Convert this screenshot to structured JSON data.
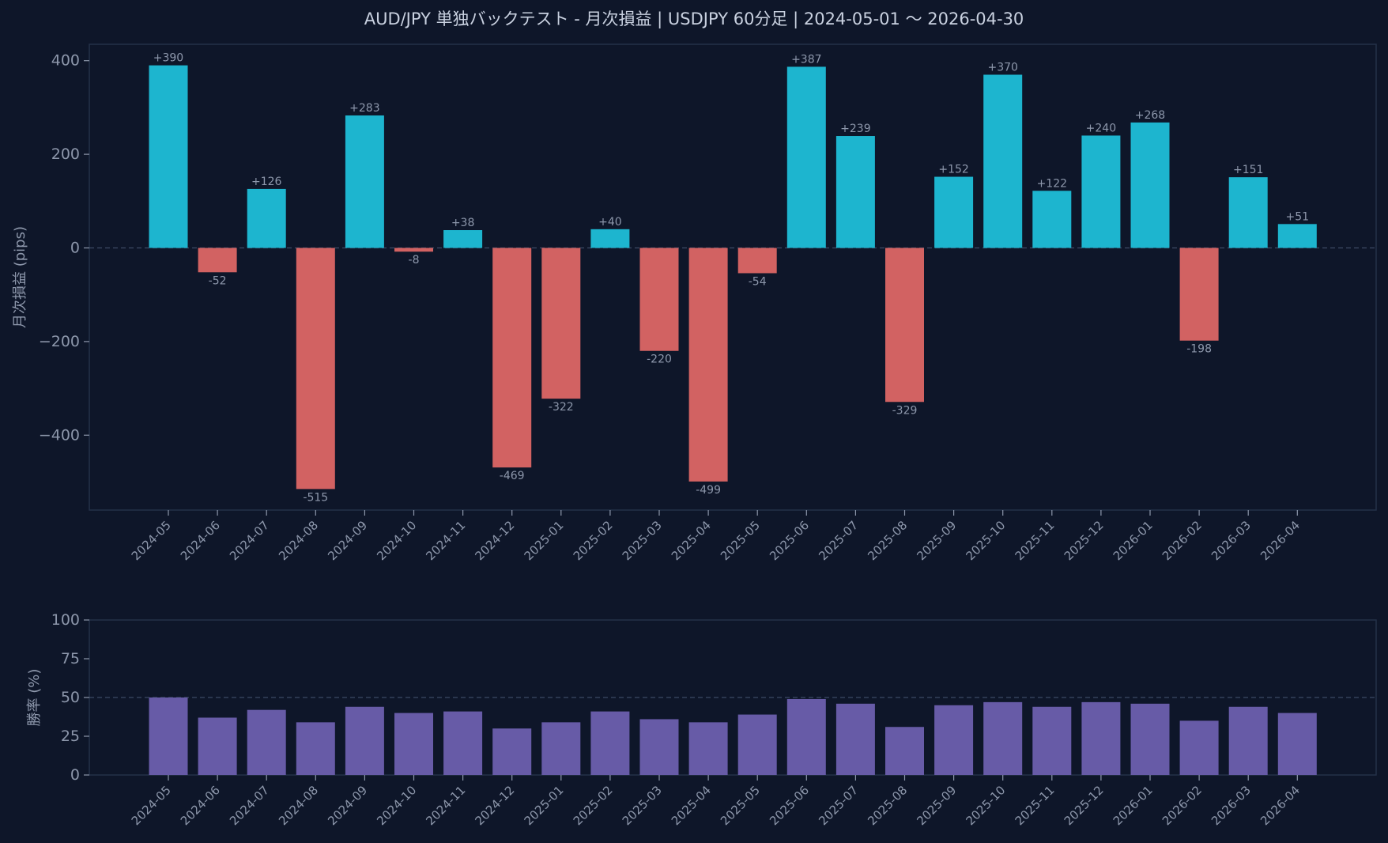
{
  "chart_data": [
    {
      "type": "bar",
      "title": "AUD/JPY 単独バックテスト - 月次損益 | USDJPY 60分足 | 2024-05-01 〜 2026-04-30",
      "xlabel": "",
      "ylabel": "月次損益 (pips)",
      "ylim": [
        -560,
        435
      ],
      "yticks": [
        400,
        200,
        0,
        -200,
        -400
      ],
      "ytick_labels": [
        "400",
        "200",
        "0",
        "−200",
        "−400"
      ],
      "reference_line": 0,
      "grid": false,
      "categories": [
        "2024-05",
        "2024-06",
        "2024-07",
        "2024-08",
        "2024-09",
        "2024-10",
        "2024-11",
        "2024-12",
        "2025-01",
        "2025-02",
        "2025-03",
        "2025-04",
        "2025-05",
        "2025-06",
        "2025-07",
        "2025-08",
        "2025-09",
        "2025-10",
        "2025-11",
        "2025-12",
        "2026-01",
        "2026-02",
        "2026-03",
        "2026-04"
      ],
      "values": [
        390,
        -52,
        126,
        -515,
        283,
        -8,
        38,
        -469,
        -322,
        40,
        -220,
        -499,
        -54,
        387,
        239,
        -329,
        152,
        370,
        122,
        240,
        268,
        -198,
        151,
        51
      ],
      "data_labels": [
        "+390",
        "-52",
        "+126",
        "-515",
        "+283",
        "-8",
        "+38",
        "-469",
        "-322",
        "+40",
        "-220",
        "-499",
        "-54",
        "+387",
        "+239",
        "-329",
        "+152",
        "+370",
        "+122",
        "+240",
        "+268",
        "-198",
        "+151",
        "+51"
      ],
      "colors": {
        "positive": "#1db5cf",
        "negative": "#d26262"
      }
    },
    {
      "type": "bar",
      "title": "",
      "xlabel": "",
      "ylabel": "勝率 (%)",
      "ylim": [
        0,
        100
      ],
      "yticks": [
        100,
        75,
        50,
        25,
        0
      ],
      "ytick_labels": [
        "100",
        "75",
        "50",
        "25",
        "0"
      ],
      "reference_line": 50,
      "grid": false,
      "categories": [
        "2024-05",
        "2024-06",
        "2024-07",
        "2024-08",
        "2024-09",
        "2024-10",
        "2024-11",
        "2024-12",
        "2025-01",
        "2025-02",
        "2025-03",
        "2025-04",
        "2025-05",
        "2025-06",
        "2025-07",
        "2025-08",
        "2025-09",
        "2025-10",
        "2025-11",
        "2025-12",
        "2026-01",
        "2026-02",
        "2026-03",
        "2026-04"
      ],
      "values": [
        50,
        37,
        42,
        34,
        44,
        40,
        41,
        30,
        34,
        41,
        36,
        34,
        39,
        49,
        46,
        31,
        45,
        47,
        44,
        47,
        46,
        35,
        44,
        40
      ],
      "colors": {
        "bar": "#675ba7"
      }
    }
  ],
  "colors": {
    "background": "#0e1629",
    "axes_border": "#243049",
    "tick_text": "#8d97ab",
    "title_text": "#c9d1e0",
    "refline": "#3c4a66"
  }
}
